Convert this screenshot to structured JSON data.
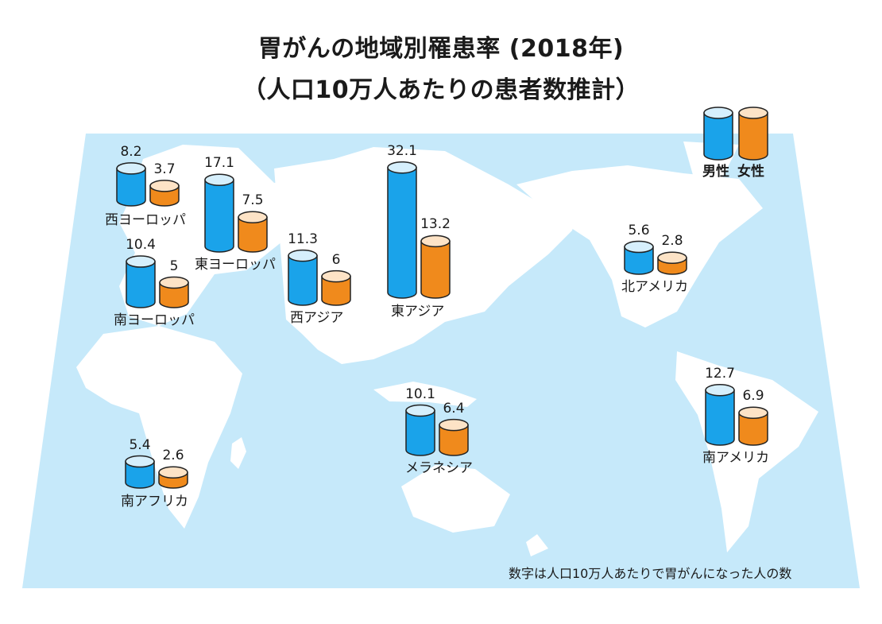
{
  "title": "胃がんの地域別罹患率 (2018年)",
  "subtitle": "（人口10万人あたりの患者数推計）",
  "note": "数字は人口10万人あたりで胃がんになった人の数",
  "colors": {
    "male": "#1aa3ea",
    "female": "#f08a1c",
    "ocean": "#c6e9fa",
    "land": "#ffffff"
  },
  "chart_data": {
    "type": "bar",
    "title": "胃がんの地域別罹患率 (2018年)",
    "subtitle": "（人口10万人あたりの患者数推計）",
    "series": [
      {
        "name": "男性",
        "values": [
          8.2,
          17.1,
          10.4,
          11.3,
          32.1,
          5.6,
          10.1,
          12.7,
          5.4
        ]
      },
      {
        "name": "女性",
        "values": [
          3.7,
          7.5,
          5.0,
          6.0,
          13.2,
          2.8,
          6.4,
          6.9,
          2.6
        ]
      }
    ],
    "categories": [
      "西ヨーロッパ",
      "東ヨーロッパ",
      "南ヨーロッパ",
      "西アジア",
      "東アジア",
      "北アメリカ",
      "メラネシア",
      "南アメリカ",
      "南アフリカ"
    ],
    "legend": [
      "男性",
      "女性"
    ],
    "legend_position": "top-right"
  }
}
